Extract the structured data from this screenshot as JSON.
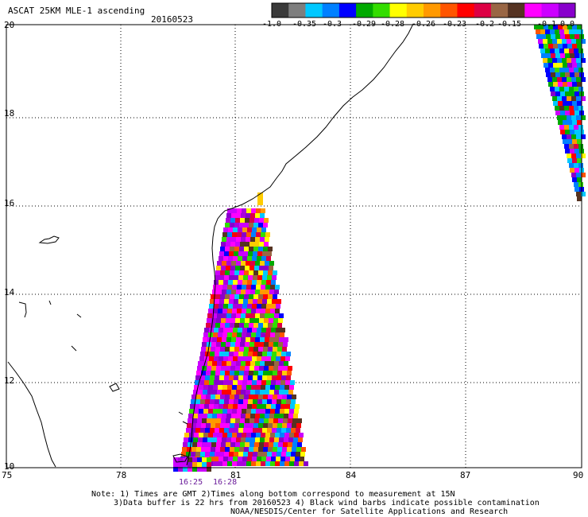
{
  "header": {
    "product": "ASCAT 25KM MLE-1 ascending",
    "date": "20160523"
  },
  "colorbar": {
    "labels": [
      "-1.0",
      "-0.35",
      "-0.3",
      "-0.29",
      "-0.28",
      "-0.26",
      "-0.23",
      "-0.2",
      "-0.15",
      "-0.1",
      "0.0"
    ],
    "colors": [
      "#3a3a3a",
      "#7e7e7e",
      "#00c8ff",
      "#0080ff",
      "#0000ff",
      "#00aa00",
      "#33dd00",
      "#ffff00",
      "#ffcc00",
      "#ff9900",
      "#ff5500",
      "#ff0000",
      "#dd0044",
      "#996644",
      "#553322",
      "#ff00ff",
      "#cc00ff",
      "#8800cc"
    ]
  },
  "map": {
    "lon_ticks": [
      "75",
      "78",
      "81",
      "84",
      "87",
      "90"
    ],
    "lat_ticks": [
      "20",
      "18",
      "16",
      "14",
      "12",
      "10"
    ],
    "grid_style": "dotted"
  },
  "swath_times": [
    "16:25",
    "16:28"
  ],
  "swath_time_color": "#6a1b9a",
  "footer": {
    "line1": "Note: 1) Times are GMT 2)Times along bottom correspond to measurement at 15N",
    "line2": "3)Data buffer is 22 hrs from 20160523 4) Black wind barbs indicate possible contamination",
    "line3": "NOAA/NESDIS/Center for Satellite Applications and Research"
  }
}
